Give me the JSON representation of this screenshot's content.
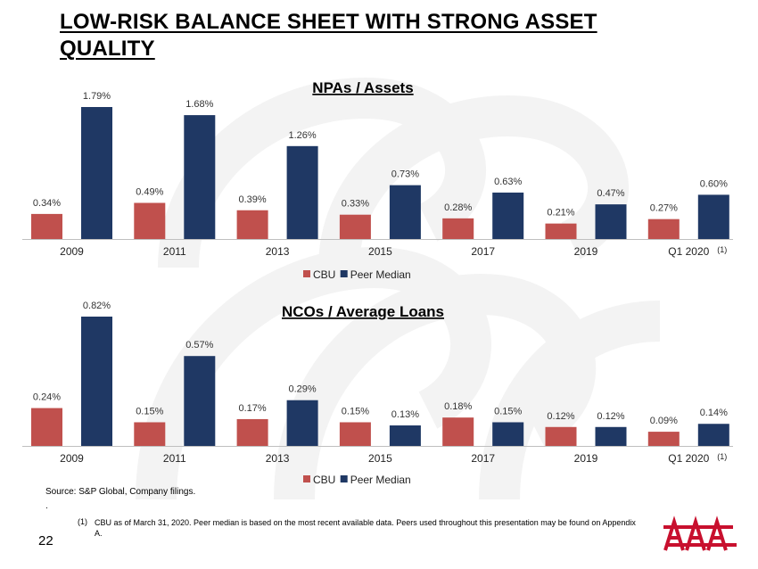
{
  "page": {
    "title": "LOW-RISK BALANCE SHEET WITH STRONG ASSET QUALITY",
    "source": "Source: S&P Global, Company filings.",
    "source_dot": ".",
    "footnote_num": "(1)",
    "footnote_text": "CBU as of March 31, 2020. Peer median is based on the most recent available data. Peers used throughout this presentation may be found on Appendix A.",
    "page_number": "22",
    "logo_icon": "company-logo-icon",
    "watermark_icon": "logo-watermark-icon"
  },
  "colors": {
    "cbu": "#C0504D",
    "peer": "#1F3864",
    "logo": "#C8102E",
    "watermark": "#F2F2F2"
  },
  "chart_data": [
    {
      "type": "bar",
      "title": "NPAs / Assets",
      "categories": [
        "2009",
        "2011",
        "2013",
        "2015",
        "2017",
        "2019",
        "Q1 2020"
      ],
      "category_notes": [
        "",
        "",
        "",
        "",
        "",
        "",
        "(1)"
      ],
      "unit": "%",
      "series": [
        {
          "name": "CBU",
          "values": [
            0.34,
            0.49,
            0.39,
            0.33,
            0.28,
            0.21,
            0.27
          ],
          "labels": [
            "0.34%",
            "0.49%",
            "0.39%",
            "0.33%",
            "0.28%",
            "0.21%",
            "0.27%"
          ]
        },
        {
          "name": "Peer Median",
          "values": [
            1.79,
            1.68,
            1.26,
            0.73,
            0.63,
            0.47,
            0.6
          ],
          "labels": [
            "1.79%",
            "1.68%",
            "1.26%",
            "0.73%",
            "0.63%",
            "0.47%",
            "0.60%"
          ]
        }
      ],
      "ylim": [
        0,
        1.79
      ],
      "legend": "bottom",
      "grid": false
    },
    {
      "type": "bar",
      "title": "NCOs / Average Loans",
      "categories": [
        "2009",
        "2011",
        "2013",
        "2015",
        "2017",
        "2019",
        "Q1 2020"
      ],
      "category_notes": [
        "",
        "",
        "",
        "",
        "",
        "",
        "(1)"
      ],
      "unit": "%",
      "series": [
        {
          "name": "CBU",
          "values": [
            0.24,
            0.15,
            0.17,
            0.15,
            0.18,
            0.12,
            0.09
          ],
          "labels": [
            "0.24%",
            "0.15%",
            "0.17%",
            "0.15%",
            "0.18%",
            "0.12%",
            "0.09%"
          ]
        },
        {
          "name": "Peer Median",
          "values": [
            0.82,
            0.57,
            0.29,
            0.13,
            0.15,
            0.12,
            0.14
          ],
          "labels": [
            "0.82%",
            "0.57%",
            "0.29%",
            "0.13%",
            "0.15%",
            "0.12%",
            "0.14%"
          ]
        }
      ],
      "ylim": [
        0,
        0.82
      ],
      "legend": "bottom",
      "grid": false
    }
  ]
}
